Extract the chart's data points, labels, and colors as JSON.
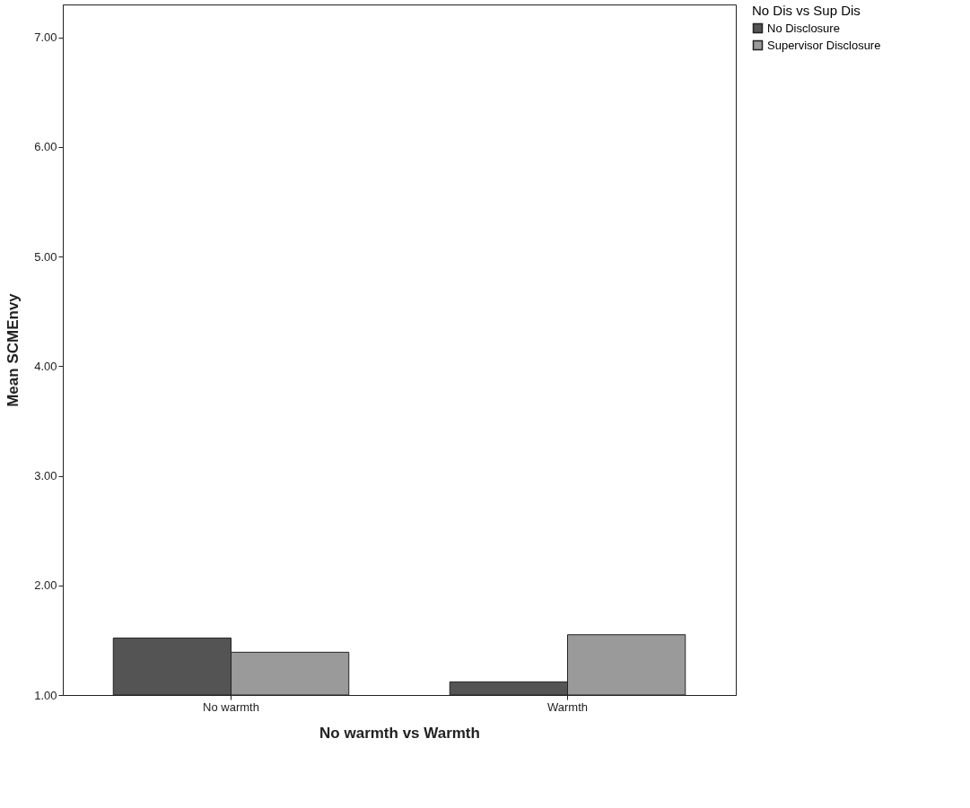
{
  "chart_data": {
    "type": "bar",
    "xlabel": "No warmth vs Warmth",
    "ylabel": "Mean SCMEnvy",
    "legend_title": "No Dis vs Sup Dis",
    "categories": [
      "No warmth",
      "Warmth"
    ],
    "series": [
      {
        "name": "No Disclosure",
        "color": "#545454",
        "values": [
          1.52,
          1.12
        ]
      },
      {
        "name": "Supervisor Disclosure",
        "color": "#9a9a9a",
        "values": [
          1.39,
          1.55
        ]
      }
    ],
    "ylim": [
      1,
      7.3
    ],
    "yticks": [
      {
        "value": 1,
        "label": "1.00"
      },
      {
        "value": 2,
        "label": "2.00"
      },
      {
        "value": 3,
        "label": "3.00"
      },
      {
        "value": 4,
        "label": "4.00"
      },
      {
        "value": 5,
        "label": "5.00"
      },
      {
        "value": 6,
        "label": "6.00"
      },
      {
        "value": 7,
        "label": "7.00"
      }
    ],
    "grid": false,
    "legend": "top right"
  }
}
